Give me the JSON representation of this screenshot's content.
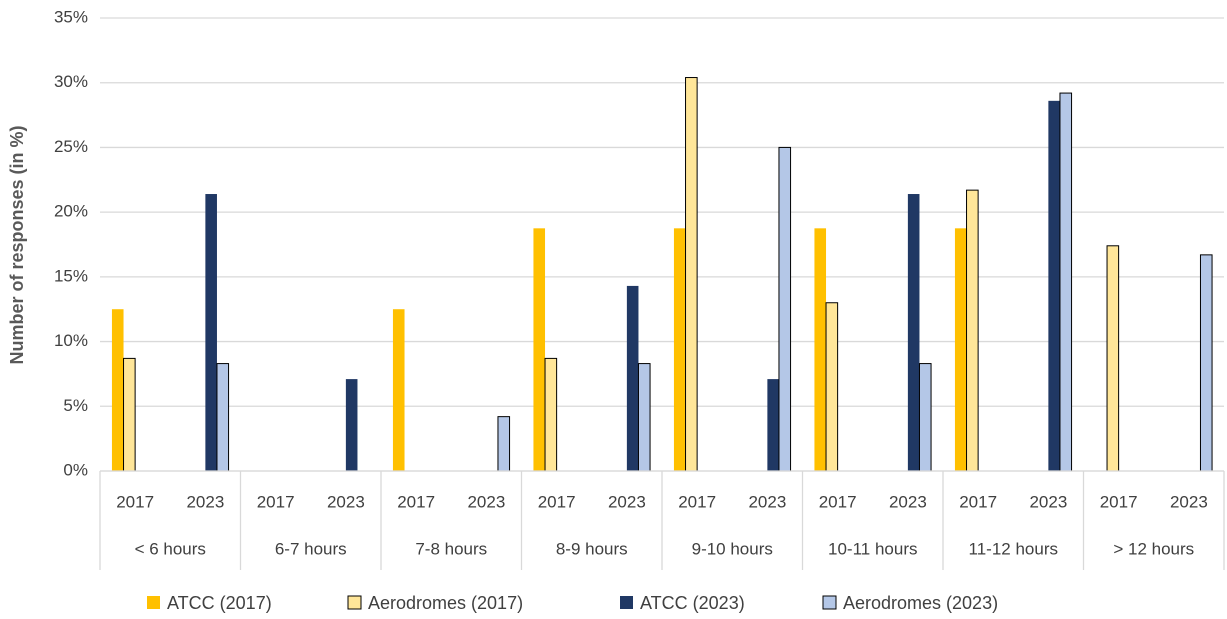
{
  "chart_data": {
    "type": "bar",
    "y_label": "Number of responses (in %)",
    "groups": [
      "< 6 hours",
      "6-7 hours",
      "7-8 hours",
      "8-9 hours",
      "9-10 hours",
      "10-11 hours",
      "11-12 hours",
      "> 12 hours"
    ],
    "categories": [
      "2017",
      "2023",
      "2017",
      "2023",
      "2017",
      "2023",
      "2017",
      "2023",
      "2017",
      "2023",
      "2017",
      "2023",
      "2017",
      "2023",
      "2017",
      "2023"
    ],
    "series": [
      {
        "name": "ATCC (2017)",
        "color": "#ffc000",
        "edgecolor": null,
        "values": [
          12.5,
          null,
          0,
          null,
          12.5,
          null,
          18.75,
          null,
          18.75,
          null,
          18.75,
          null,
          18.75,
          null,
          0,
          null
        ]
      },
      {
        "name": "Aerodromes (2017)",
        "color": "#ffe699",
        "edgecolor": "#000000",
        "values": [
          8.7,
          null,
          0,
          null,
          0,
          null,
          8.7,
          null,
          30.4,
          null,
          13.0,
          null,
          21.7,
          null,
          17.4,
          null
        ]
      },
      {
        "name": "ATCC (2023)",
        "color": "#203864",
        "edgecolor": null,
        "values": [
          null,
          21.4,
          null,
          7.1,
          null,
          0,
          null,
          14.3,
          null,
          7.1,
          null,
          21.4,
          null,
          28.6,
          null,
          0
        ]
      },
      {
        "name": "Aerodromes (2023)",
        "color": "#b4c7e7",
        "edgecolor": "#000000",
        "values": [
          null,
          8.3,
          null,
          0,
          null,
          4.2,
          null,
          8.3,
          null,
          25.0,
          null,
          8.3,
          null,
          29.2,
          null,
          16.7
        ]
      }
    ],
    "ylim": [
      0,
      35
    ],
    "yticks": [
      {
        "value": 0,
        "label": "0%"
      },
      {
        "value": 5,
        "label": "5%"
      },
      {
        "value": 10,
        "label": "10%"
      },
      {
        "value": 15,
        "label": "15%"
      },
      {
        "value": 20,
        "label": "20%"
      },
      {
        "value": 25,
        "label": "25%"
      },
      {
        "value": 30,
        "label": "30%"
      },
      {
        "value": 35,
        "label": "35%"
      }
    ],
    "grid": true
  }
}
